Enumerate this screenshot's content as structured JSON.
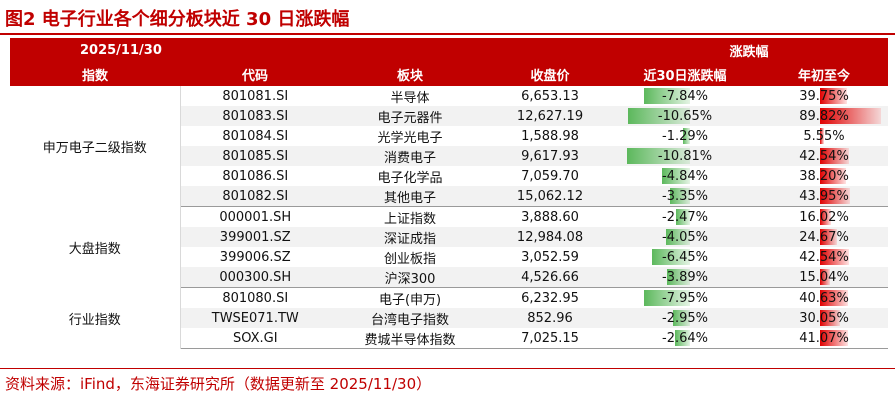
{
  "title": "图2 电子行业各个细分板块近 30 日涨跌幅",
  "header": {
    "date": "2025/11/30",
    "change_group": "涨跌幅",
    "columns": [
      "指数",
      "代码",
      "板块",
      "收盘价",
      "近30日涨跌幅",
      "年初至今"
    ]
  },
  "groups": [
    {
      "name": "申万电子二级指数",
      "rows": [
        {
          "code": "801081.SI",
          "sector": "半导体",
          "close": "6,653.13",
          "chg30": "-7.84%",
          "ytd": "39.75%",
          "chg30_value": -7.84,
          "ytd_value": 39.75
        },
        {
          "code": "801083.SI",
          "sector": "电子元器件",
          "close": "12,627.19",
          "chg30": "-10.65%",
          "ytd": "89.82%",
          "chg30_value": -10.65,
          "ytd_value": 89.82
        },
        {
          "code": "801084.SI",
          "sector": "光学光电子",
          "close": "1,588.98",
          "chg30": "-1.29%",
          "ytd": "5.55%",
          "chg30_value": -1.29,
          "ytd_value": 5.55
        },
        {
          "code": "801085.SI",
          "sector": "消费电子",
          "close": "9,617.93",
          "chg30": "-10.81%",
          "ytd": "42.54%",
          "chg30_value": -10.81,
          "ytd_value": 42.54
        },
        {
          "code": "801086.SI",
          "sector": "电子化学品",
          "close": "7,059.70",
          "chg30": "-4.84%",
          "ytd": "38.20%",
          "chg30_value": -4.84,
          "ytd_value": 38.2
        },
        {
          "code": "801082.SI",
          "sector": "其他电子",
          "close": "15,062.12",
          "chg30": "-3.35%",
          "ytd": "43.95%",
          "chg30_value": -3.35,
          "ytd_value": 43.95
        }
      ]
    },
    {
      "name": "大盘指数",
      "rows": [
        {
          "code": "000001.SH",
          "sector": "上证指数",
          "close": "3,888.60",
          "chg30": "-2.47%",
          "ytd": "16.02%",
          "chg30_value": -2.47,
          "ytd_value": 16.02
        },
        {
          "code": "399001.SZ",
          "sector": "深证成指",
          "close": "12,984.08",
          "chg30": "-4.05%",
          "ytd": "24.67%",
          "chg30_value": -4.05,
          "ytd_value": 24.67
        },
        {
          "code": "399006.SZ",
          "sector": "创业板指",
          "close": "3,052.59",
          "chg30": "-6.45%",
          "ytd": "42.54%",
          "chg30_value": -6.45,
          "ytd_value": 42.54
        },
        {
          "code": "000300.SH",
          "sector": "沪深300",
          "close": "4,526.66",
          "chg30": "-3.89%",
          "ytd": "15.04%",
          "chg30_value": -3.89,
          "ytd_value": 15.04
        }
      ]
    },
    {
      "name": "行业指数",
      "rows": [
        {
          "code": "801080.SI",
          "sector": "电子(申万)",
          "close": "6,232.95",
          "chg30": "-7.95%",
          "ytd": "40.63%",
          "chg30_value": -7.95,
          "ytd_value": 40.63
        },
        {
          "code": "TWSE071.TW",
          "sector": "台湾电子指数",
          "close": "852.96",
          "chg30": "-2.95%",
          "ytd": "30.05%",
          "chg30_value": -2.95,
          "ytd_value": 30.05
        },
        {
          "code": "SOX.GI",
          "sector": "费城半导体指数",
          "close": "7,025.15",
          "chg30": "-2.64%",
          "ytd": "41.07%",
          "chg30_value": -2.64,
          "ytd_value": 41.07
        }
      ]
    }
  ],
  "footer": "资料来源：iFind，东海证券研究所（数据更新至 2025/11/30）",
  "colors": {
    "accent": "#c00000",
    "positive": "#e00000",
    "negative": "#5cb85c"
  }
}
